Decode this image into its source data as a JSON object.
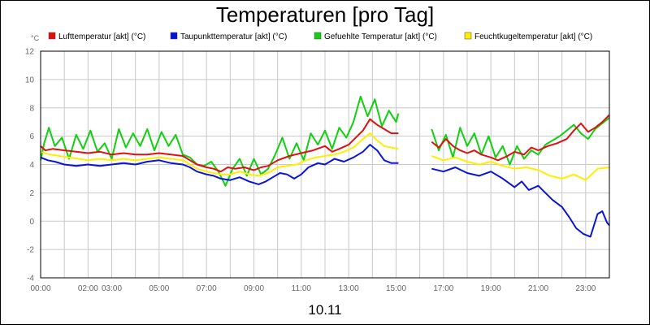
{
  "chart_data": {
    "type": "line",
    "title": "Temperaturen [pro Tag]",
    "y_unit": "°C",
    "xlabel": "10.11",
    "ylim": [
      -4,
      12
    ],
    "y_ticks": [
      12,
      10,
      8,
      6,
      4,
      2,
      0,
      -2,
      -4
    ],
    "x_range_hours": [
      0,
      24
    ],
    "x_ticks": [
      {
        "label": "00:00",
        "h": 0.0
      },
      {
        "label": "02:00",
        "h": 2.0
      },
      {
        "label": "03:00",
        "h": 3.0
      },
      {
        "label": "05:00",
        "h": 5.0
      },
      {
        "label": "07:00",
        "h": 7.0
      },
      {
        "label": "09:00",
        "h": 9.0
      },
      {
        "label": "11:00",
        "h": 11.0
      },
      {
        "label": "13:00",
        "h": 13.0
      },
      {
        "label": "15:00",
        "h": 15.0
      },
      {
        "label": "17:00",
        "h": 17.0
      },
      {
        "label": "19:00",
        "h": 19.0
      },
      {
        "label": "21:00",
        "h": 21.0
      },
      {
        "label": "23:00",
        "h": 23.0
      }
    ],
    "grid": true,
    "legend_position": "top",
    "series": [
      {
        "name": "Lufttemperatur [akt] (°C)",
        "color": "#e01010",
        "segments": [
          [
            [
              0,
              5.3
            ],
            [
              0.2,
              5.0
            ],
            [
              0.5,
              5.1
            ],
            [
              1,
              5.0
            ],
            [
              1.5,
              4.9
            ],
            [
              2,
              4.8
            ],
            [
              2.5,
              4.9
            ],
            [
              3,
              4.7
            ],
            [
              3.5,
              4.8
            ],
            [
              4,
              4.7
            ],
            [
              4.5,
              4.7
            ],
            [
              5,
              4.8
            ],
            [
              5.5,
              4.7
            ],
            [
              6,
              4.6
            ],
            [
              6.3,
              4.3
            ],
            [
              6.6,
              4.0
            ],
            [
              7,
              3.8
            ],
            [
              7.3,
              3.7
            ],
            [
              7.6,
              3.5
            ],
            [
              7.9,
              3.8
            ],
            [
              8.2,
              3.7
            ],
            [
              8.6,
              3.8
            ],
            [
              9,
              3.6
            ],
            [
              9.3,
              3.8
            ],
            [
              9.6,
              3.9
            ],
            [
              10,
              4.3
            ],
            [
              10.5,
              4.6
            ],
            [
              11,
              4.8
            ],
            [
              11.5,
              5.0
            ],
            [
              12,
              5.3
            ],
            [
              12.3,
              4.9
            ],
            [
              12.6,
              5.1
            ],
            [
              13,
              5.4
            ],
            [
              13.3,
              5.9
            ],
            [
              13.6,
              6.4
            ],
            [
              13.9,
              7.2
            ],
            [
              14.2,
              6.8
            ],
            [
              14.5,
              6.5
            ],
            [
              14.8,
              6.2
            ],
            [
              15.1,
              6.2
            ]
          ],
          [
            [
              16.5,
              5.6
            ],
            [
              16.8,
              5.2
            ],
            [
              17.1,
              5.8
            ],
            [
              17.4,
              5.3
            ],
            [
              17.7,
              5.0
            ],
            [
              18,
              4.8
            ],
            [
              18.3,
              5.0
            ],
            [
              18.6,
              4.7
            ],
            [
              19,
              4.5
            ],
            [
              19.3,
              4.3
            ],
            [
              19.7,
              4.6
            ],
            [
              20,
              4.9
            ],
            [
              20.4,
              4.7
            ],
            [
              20.7,
              5.2
            ],
            [
              21,
              5.0
            ],
            [
              21.4,
              5.3
            ],
            [
              21.8,
              5.5
            ],
            [
              22.2,
              5.8
            ],
            [
              22.5,
              6.4
            ],
            [
              22.8,
              6.9
            ],
            [
              23.1,
              6.3
            ],
            [
              23.4,
              6.6
            ],
            [
              23.7,
              7.0
            ],
            [
              24,
              7.5
            ]
          ]
        ]
      },
      {
        "name": "Taupunkttemperatur [akt] (°C)",
        "color": "#0a14d8",
        "segments": [
          [
            [
              0,
              4.5
            ],
            [
              0.3,
              4.3
            ],
            [
              0.6,
              4.2
            ],
            [
              1,
              4.0
            ],
            [
              1.5,
              3.9
            ],
            [
              2,
              4.0
            ],
            [
              2.5,
              3.9
            ],
            [
              3,
              4.0
            ],
            [
              3.5,
              4.1
            ],
            [
              4,
              4.0
            ],
            [
              4.5,
              4.2
            ],
            [
              5,
              4.3
            ],
            [
              5.5,
              4.1
            ],
            [
              6,
              4.0
            ],
            [
              6.3,
              3.8
            ],
            [
              6.6,
              3.5
            ],
            [
              7,
              3.3
            ],
            [
              7.3,
              3.2
            ],
            [
              7.6,
              3.0
            ],
            [
              8,
              2.9
            ],
            [
              8.4,
              3.1
            ],
            [
              8.8,
              2.8
            ],
            [
              9.2,
              2.6
            ],
            [
              9.5,
              2.8
            ],
            [
              9.8,
              3.1
            ],
            [
              10.1,
              3.4
            ],
            [
              10.4,
              3.3
            ],
            [
              10.7,
              3.0
            ],
            [
              11,
              3.3
            ],
            [
              11.3,
              3.8
            ],
            [
              11.7,
              4.1
            ],
            [
              12,
              4.0
            ],
            [
              12.4,
              4.4
            ],
            [
              12.8,
              4.2
            ],
            [
              13.2,
              4.5
            ],
            [
              13.6,
              4.9
            ],
            [
              13.9,
              5.4
            ],
            [
              14.2,
              5.0
            ],
            [
              14.5,
              4.3
            ],
            [
              14.8,
              4.1
            ],
            [
              15.1,
              4.1
            ]
          ],
          [
            [
              16.5,
              3.7
            ],
            [
              17,
              3.5
            ],
            [
              17.5,
              3.8
            ],
            [
              18,
              3.4
            ],
            [
              18.5,
              3.2
            ],
            [
              19,
              3.5
            ],
            [
              19.5,
              3.0
            ],
            [
              20,
              2.4
            ],
            [
              20.3,
              2.8
            ],
            [
              20.6,
              2.2
            ],
            [
              21,
              2.5
            ],
            [
              21.3,
              2.0
            ],
            [
              21.6,
              1.5
            ],
            [
              22,
              1.0
            ],
            [
              22.3,
              0.3
            ],
            [
              22.6,
              -0.5
            ],
            [
              22.9,
              -0.9
            ],
            [
              23.2,
              -1.1
            ],
            [
              23.5,
              0.5
            ],
            [
              23.7,
              0.7
            ],
            [
              23.9,
              -0.1
            ],
            [
              24,
              -0.3
            ]
          ]
        ]
      },
      {
        "name": "Gefuehlte Temperatur [akt] (°C)",
        "color": "#10d010",
        "segments": [
          [
            [
              0,
              4.3
            ],
            [
              0.15,
              5.5
            ],
            [
              0.35,
              6.6
            ],
            [
              0.6,
              5.3
            ],
            [
              0.9,
              5.9
            ],
            [
              1.2,
              4.4
            ],
            [
              1.5,
              6.1
            ],
            [
              1.8,
              5.1
            ],
            [
              2.1,
              6.4
            ],
            [
              2.4,
              4.9
            ],
            [
              2.7,
              5.5
            ],
            [
              3,
              4.4
            ],
            [
              3.3,
              6.5
            ],
            [
              3.6,
              5.2
            ],
            [
              3.9,
              6.2
            ],
            [
              4.2,
              5.3
            ],
            [
              4.5,
              6.5
            ],
            [
              4.8,
              5.0
            ],
            [
              5.1,
              6.3
            ],
            [
              5.4,
              5.3
            ],
            [
              5.7,
              6.1
            ],
            [
              6,
              4.7
            ],
            [
              6.3,
              4.5
            ],
            [
              6.6,
              4.0
            ],
            [
              6.9,
              3.9
            ],
            [
              7.2,
              4.2
            ],
            [
              7.5,
              3.5
            ],
            [
              7.8,
              2.5
            ],
            [
              8.1,
              3.7
            ],
            [
              8.4,
              4.4
            ],
            [
              8.7,
              3.2
            ],
            [
              9,
              4.4
            ],
            [
              9.3,
              3.3
            ],
            [
              9.6,
              3.7
            ],
            [
              9.9,
              4.7
            ],
            [
              10.2,
              5.9
            ],
            [
              10.5,
              4.4
            ],
            [
              10.8,
              5.5
            ],
            [
              11.1,
              4.3
            ],
            [
              11.4,
              6.2
            ],
            [
              11.7,
              5.4
            ],
            [
              12,
              6.4
            ],
            [
              12.3,
              5.1
            ],
            [
              12.6,
              6.6
            ],
            [
              12.9,
              5.9
            ],
            [
              13.2,
              7.0
            ],
            [
              13.5,
              8.8
            ],
            [
              13.8,
              7.4
            ],
            [
              14.1,
              8.6
            ],
            [
              14.4,
              6.7
            ],
            [
              14.7,
              7.8
            ],
            [
              15,
              7.0
            ],
            [
              15.1,
              7.6
            ]
          ],
          [
            [
              16.5,
              6.5
            ],
            [
              16.8,
              5.0
            ],
            [
              17.1,
              6.1
            ],
            [
              17.4,
              4.5
            ],
            [
              17.7,
              6.6
            ],
            [
              18,
              5.3
            ],
            [
              18.3,
              6.2
            ],
            [
              18.6,
              4.7
            ],
            [
              18.9,
              6.0
            ],
            [
              19.2,
              4.5
            ],
            [
              19.5,
              5.3
            ],
            [
              19.8,
              4.0
            ],
            [
              20.1,
              5.3
            ],
            [
              20.4,
              4.4
            ],
            [
              20.7,
              5.0
            ],
            [
              21,
              4.7
            ],
            [
              21.3,
              5.4
            ],
            [
              21.6,
              5.7
            ],
            [
              21.9,
              6.0
            ],
            [
              22.2,
              6.4
            ],
            [
              22.5,
              6.8
            ],
            [
              22.8,
              6.2
            ],
            [
              23.1,
              5.8
            ],
            [
              23.4,
              6.5
            ],
            [
              23.7,
              6.9
            ],
            [
              24,
              7.3
            ]
          ]
        ]
      },
      {
        "name": "Feuchtkugeltemperatur [akt] (°C)",
        "color": "#ffee00",
        "segments": [
          [
            [
              0,
              4.9
            ],
            [
              0.4,
              4.7
            ],
            [
              0.8,
              4.6
            ],
            [
              1.2,
              4.5
            ],
            [
              1.6,
              4.4
            ],
            [
              2,
              4.3
            ],
            [
              2.5,
              4.4
            ],
            [
              3,
              4.3
            ],
            [
              3.5,
              4.4
            ],
            [
              4,
              4.3
            ],
            [
              4.5,
              4.4
            ],
            [
              5,
              4.5
            ],
            [
              5.5,
              4.4
            ],
            [
              6,
              4.3
            ],
            [
              6.3,
              4.0
            ],
            [
              6.6,
              3.7
            ],
            [
              7,
              3.5
            ],
            [
              7.3,
              3.4
            ],
            [
              7.6,
              3.3
            ],
            [
              8,
              3.3
            ],
            [
              8.4,
              3.5
            ],
            [
              8.8,
              3.3
            ],
            [
              9.2,
              3.2
            ],
            [
              9.6,
              3.4
            ],
            [
              10,
              3.8
            ],
            [
              10.4,
              3.9
            ],
            [
              10.8,
              4.0
            ],
            [
              11.2,
              4.3
            ],
            [
              11.6,
              4.5
            ],
            [
              12,
              4.6
            ],
            [
              12.4,
              4.7
            ],
            [
              12.8,
              4.9
            ],
            [
              13.2,
              5.2
            ],
            [
              13.6,
              5.8
            ],
            [
              13.9,
              6.2
            ],
            [
              14.2,
              5.7
            ],
            [
              14.5,
              5.3
            ],
            [
              14.8,
              5.2
            ],
            [
              15.1,
              5.1
            ]
          ],
          [
            [
              16.5,
              4.6
            ],
            [
              17,
              4.3
            ],
            [
              17.5,
              4.5
            ],
            [
              18,
              4.2
            ],
            [
              18.5,
              4.0
            ],
            [
              19,
              4.2
            ],
            [
              19.5,
              3.9
            ],
            [
              20,
              3.7
            ],
            [
              20.5,
              3.8
            ],
            [
              21,
              3.6
            ],
            [
              21.5,
              3.2
            ],
            [
              22,
              3.0
            ],
            [
              22.5,
              3.3
            ],
            [
              23,
              2.9
            ],
            [
              23.5,
              3.7
            ],
            [
              24,
              3.8
            ]
          ]
        ]
      }
    ]
  }
}
